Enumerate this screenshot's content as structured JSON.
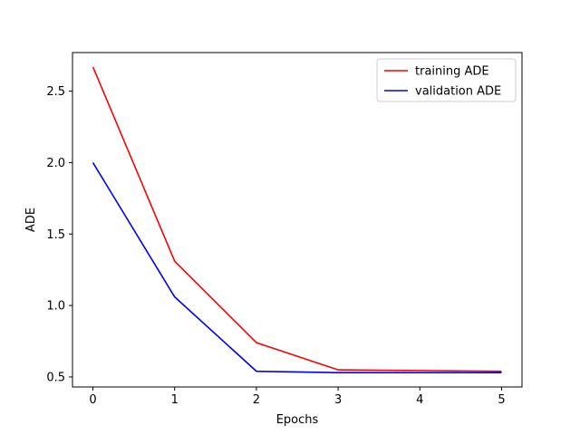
{
  "chart_data": {
    "type": "line",
    "title": "",
    "xlabel": "Epochs",
    "ylabel": "ADE",
    "x": [
      0,
      1,
      2,
      3,
      4,
      5
    ],
    "xlim": [
      -0.25,
      5.25
    ],
    "ylim": [
      0.43,
      2.77
    ],
    "xticks": [
      0,
      1,
      2,
      3,
      4,
      5
    ],
    "xtick_labels": [
      "0",
      "1",
      "2",
      "3",
      "4",
      "5"
    ],
    "yticks": [
      0.5,
      1.0,
      1.5,
      2.0,
      2.5
    ],
    "ytick_labels": [
      "0.5",
      "1.0",
      "1.5",
      "2.0",
      "2.5"
    ],
    "grid": false,
    "legend_position": "top-right",
    "series": [
      {
        "name": "training ADE",
        "color": "#ff0000",
        "values": [
          2.67,
          1.31,
          0.74,
          0.55,
          0.545,
          0.54
        ]
      },
      {
        "name": "validation ADE",
        "color": "#0000ff",
        "values": [
          2.0,
          1.06,
          0.54,
          0.53,
          0.53,
          0.53
        ]
      }
    ]
  }
}
